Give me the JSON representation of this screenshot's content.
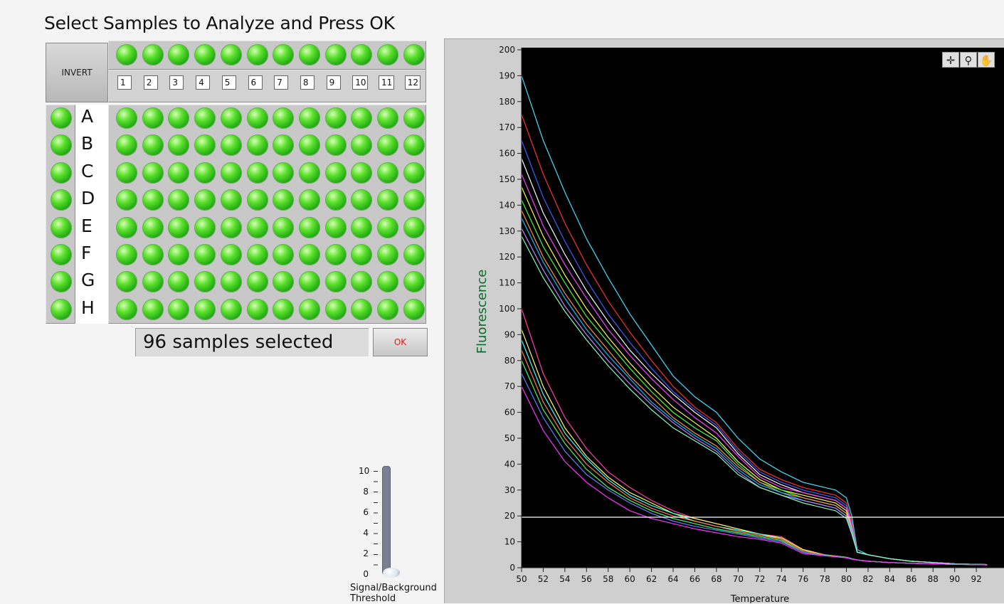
{
  "title": "Select Samples to Analyze and Press OK",
  "invert_label": "INVERT",
  "columns": [
    "1",
    "2",
    "3",
    "4",
    "5",
    "6",
    "7",
    "8",
    "9",
    "10",
    "11",
    "12"
  ],
  "rows": [
    "A",
    "B",
    "C",
    "D",
    "E",
    "F",
    "G",
    "H"
  ],
  "status_text": "96 samples selected",
  "ok_label": "OK",
  "led_color": "#39c71f",
  "threshold_slider": {
    "label": "Signal/Background Threshold",
    "ticks": [
      "10",
      "8",
      "6",
      "4",
      "2",
      "0"
    ],
    "value": 0
  },
  "graph_tools": [
    "crosshair-icon",
    "zoom-icon",
    "pan-hand-icon"
  ],
  "chart_data": {
    "type": "line",
    "xlabel": "Temperature",
    "ylabel": "Fluorescence",
    "xlim": [
      50,
      93
    ],
    "ylim": [
      0,
      200
    ],
    "x_ticks": [
      "50",
      "52",
      "54",
      "56",
      "58",
      "60",
      "62",
      "64",
      "66",
      "68",
      "70",
      "72",
      "74",
      "76",
      "78",
      "80",
      "82",
      "84",
      "86",
      "88",
      "90",
      "92"
    ],
    "y_ticks": [
      "0",
      "10",
      "20",
      "30",
      "40",
      "50",
      "60",
      "70",
      "80",
      "90",
      "100",
      "110",
      "120",
      "130",
      "140",
      "150",
      "160",
      "170",
      "180",
      "190",
      "200"
    ],
    "background": "#000000",
    "threshold_line": {
      "y": 19.5,
      "color": "#ffffff"
    },
    "x": [
      50,
      52,
      54,
      56,
      58,
      60,
      62,
      64,
      66,
      68,
      70,
      72,
      74,
      76,
      78,
      79,
      80,
      80.5,
      81,
      82,
      84,
      86,
      88,
      90,
      92,
      93
    ],
    "series": [
      {
        "values": [
          190,
          165,
          145,
          127,
          112,
          98,
          86,
          74,
          66,
          60,
          50,
          42,
          37,
          33,
          31,
          30,
          27,
          20,
          7,
          5,
          3.5,
          2.5,
          2,
          1.5,
          1.3,
          1.2
        ],
        "color": "#40e0ff"
      },
      {
        "values": [
          175,
          152,
          133,
          117,
          103,
          91,
          80,
          70,
          62,
          56,
          46,
          38,
          34,
          31,
          29,
          28,
          25,
          18,
          6,
          5,
          3.5,
          2.5,
          2,
          1.5,
          1.3,
          1.2
        ],
        "color": "#ff3030"
      },
      {
        "values": [
          165,
          143,
          126,
          111,
          98,
          87,
          77,
          68,
          61,
          55,
          45,
          37,
          33,
          30,
          28,
          27,
          24,
          17,
          6,
          5,
          3.5,
          2.5,
          2,
          1.5,
          1.3,
          1.2
        ],
        "color": "#4060ff"
      },
      {
        "values": [
          158,
          137,
          121,
          107,
          95,
          84,
          75,
          67,
          60,
          54,
          44,
          36,
          32,
          29,
          27,
          26,
          23,
          16,
          6,
          5,
          3.5,
          2.5,
          2,
          1.5,
          1.3,
          1.2
        ],
        "color": "#ffffff"
      },
      {
        "values": [
          152,
          132,
          117,
          104,
          92,
          82,
          73,
          65,
          58,
          52,
          43,
          35,
          31,
          29,
          27,
          26,
          23,
          16,
          6,
          5,
          3.5,
          2.5,
          2,
          1.5,
          1.3,
          1.2
        ],
        "color": "#ff40ff"
      },
      {
        "values": [
          147,
          128,
          113,
          100,
          89,
          79,
          70,
          62,
          56,
          50,
          41,
          34,
          30,
          28,
          26,
          25,
          22,
          15,
          6,
          5,
          3.5,
          2.5,
          2,
          1.5,
          1.3,
          1.2
        ],
        "color": "#ffff40"
      },
      {
        "values": [
          142,
          124,
          110,
          97,
          87,
          77,
          68,
          60,
          54,
          49,
          40,
          33,
          30,
          27,
          25,
          24,
          21,
          15,
          6,
          5,
          3.5,
          2.5,
          2,
          1.5,
          1.3,
          1.2
        ],
        "color": "#40ff40"
      },
      {
        "values": [
          138,
          120,
          106,
          94,
          84,
          74,
          66,
          58,
          52,
          47,
          39,
          33,
          29,
          27,
          25,
          24,
          21,
          14,
          6,
          5,
          3.5,
          2.5,
          2,
          1.5,
          1.3,
          1.2
        ],
        "color": "#ff9040"
      },
      {
        "values": [
          135,
          118,
          104,
          92,
          82,
          73,
          64,
          57,
          51,
          46,
          38,
          32,
          29,
          26,
          24,
          23,
          20,
          14,
          6,
          5,
          3.5,
          2.5,
          2,
          1.5,
          1.3,
          1.2
        ],
        "color": "#00c0ff"
      },
      {
        "values": [
          131,
          115,
          101,
          90,
          80,
          71,
          63,
          56,
          50,
          45,
          37,
          31,
          28,
          26,
          24,
          23,
          20,
          14,
          6,
          5,
          3.5,
          2.5,
          2,
          1.5,
          1.3,
          1.2
        ],
        "color": "#c080ff"
      },
      {
        "values": [
          128,
          112,
          99,
          88,
          78,
          69,
          61,
          54,
          49,
          44,
          36,
          31,
          28,
          25,
          23,
          22,
          19,
          13,
          6,
          5,
          3.5,
          2.5,
          2,
          1.5,
          1.3,
          1.2
        ],
        "color": "#80ffc0"
      },
      {
        "values": [
          100,
          75,
          58,
          46,
          37,
          31,
          26,
          22,
          19,
          17,
          15,
          13,
          12,
          7,
          5,
          4.5,
          4,
          3.5,
          3,
          2.5,
          2,
          1.7,
          1.5,
          1.3,
          1.2,
          1.1
        ],
        "color": "#ff40a0"
      },
      {
        "values": [
          92,
          70,
          54,
          43,
          35,
          29,
          25,
          21,
          19,
          17,
          15,
          13,
          11.5,
          7,
          5,
          4.5,
          4,
          3.5,
          3,
          2.5,
          2,
          1.7,
          1.5,
          1.3,
          1.2,
          1.1
        ],
        "color": "#ffff60"
      },
      {
        "values": [
          88,
          67,
          52,
          42,
          34,
          28,
          24,
          21,
          18,
          16,
          14.5,
          13,
          11,
          6.5,
          5,
          4.5,
          4,
          3.5,
          3,
          2.5,
          2,
          1.7,
          1.5,
          1.3,
          1.2,
          1.1
        ],
        "color": "#40ffff"
      },
      {
        "values": [
          84,
          64,
          50,
          40,
          33,
          27,
          23,
          20,
          18,
          16,
          14,
          12.5,
          11,
          6.5,
          5,
          4.5,
          4,
          3.5,
          3,
          2.5,
          2,
          1.7,
          1.5,
          1.3,
          1.2,
          1.1
        ],
        "color": "#ff8040"
      },
      {
        "values": [
          80,
          61,
          48,
          38,
          31,
          26,
          22,
          19,
          17,
          15,
          13.5,
          12,
          10.5,
          6,
          4.8,
          4.4,
          4,
          3.5,
          3,
          2.5,
          2,
          1.7,
          1.5,
          1.3,
          1.2,
          1.1
        ],
        "color": "#40ff60"
      },
      {
        "values": [
          75,
          58,
          45,
          36,
          30,
          25,
          21,
          18,
          16,
          14.5,
          13,
          11.5,
          10,
          6,
          4.7,
          4.3,
          3.9,
          3.4,
          3,
          2.5,
          2,
          1.7,
          1.5,
          1.3,
          1.2,
          1.1
        ],
        "color": "#6080ff"
      },
      {
        "values": [
          70,
          53,
          41,
          33,
          27,
          22,
          19,
          17,
          15,
          13.5,
          12,
          11,
          9.5,
          5.5,
          4.6,
          4.2,
          3.8,
          3.3,
          3,
          2.5,
          2,
          1.7,
          1.5,
          1.3,
          1.2,
          1.1
        ],
        "color": "#ff30ff"
      }
    ]
  }
}
